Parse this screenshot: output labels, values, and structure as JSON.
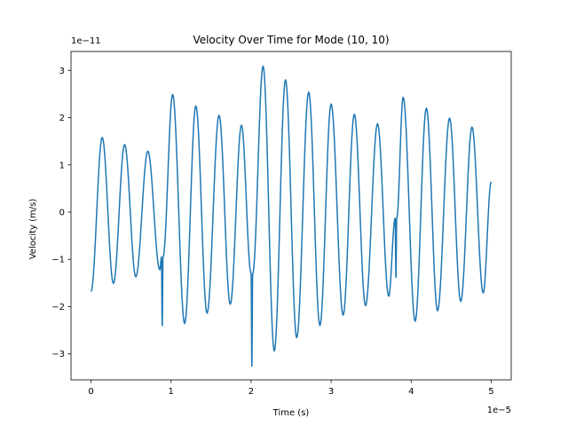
{
  "chart_data": {
    "type": "line",
    "title": "Velocity Over Time for Mode (10, 10)",
    "xlabel": "Time (s)",
    "ylabel": "Velocity (m/s)",
    "x_multiplier": "1e−5",
    "y_multiplier": "1e−11",
    "xlim": [
      -0.25,
      5.25
    ],
    "ylim": [
      -3.55,
      3.4
    ],
    "xticks": [
      0,
      1,
      2,
      3,
      4,
      5
    ],
    "xtick_labels": [
      "0",
      "1",
      "2",
      "3",
      "4",
      "5"
    ],
    "yticks": [
      -3,
      -2,
      -1,
      0,
      1,
      2,
      3
    ],
    "ytick_labels": [
      "−3",
      "−2",
      "−1",
      "0",
      "1",
      "2",
      "3"
    ],
    "grid": false,
    "legend": "none",
    "series": [
      {
        "color": "#1f77b4",
        "x": [
          0.0,
          0.14,
          0.28,
          0.42,
          0.56,
          0.71,
          0.86,
          0.88,
          0.89,
          0.9,
          1.02,
          1.17,
          1.31,
          1.45,
          1.6,
          1.74,
          1.88,
          2.0,
          2.01,
          2.02,
          2.15,
          2.29,
          2.43,
          2.57,
          2.72,
          2.86,
          3.0,
          3.15,
          3.29,
          3.43,
          3.58,
          3.72,
          3.8,
          3.81,
          3.82,
          3.9,
          4.05,
          4.19,
          4.33,
          4.48,
          4.62,
          4.76,
          4.9,
          5.0
        ],
        "y": [
          -1.68,
          1.58,
          -1.51,
          1.43,
          -1.37,
          1.29,
          -1.22,
          -0.95,
          -2.4,
          -0.95,
          2.49,
          -2.36,
          2.25,
          -2.14,
          2.05,
          -1.95,
          1.84,
          -1.3,
          -3.26,
          -1.3,
          3.09,
          -2.94,
          2.8,
          -2.66,
          2.54,
          -2.4,
          2.29,
          -2.18,
          2.07,
          -1.98,
          1.87,
          -1.78,
          -0.13,
          -1.38,
          -0.13,
          2.43,
          -2.31,
          2.2,
          -2.09,
          1.99,
          -1.89,
          1.8,
          -1.71,
          0.64
        ]
      }
    ]
  }
}
